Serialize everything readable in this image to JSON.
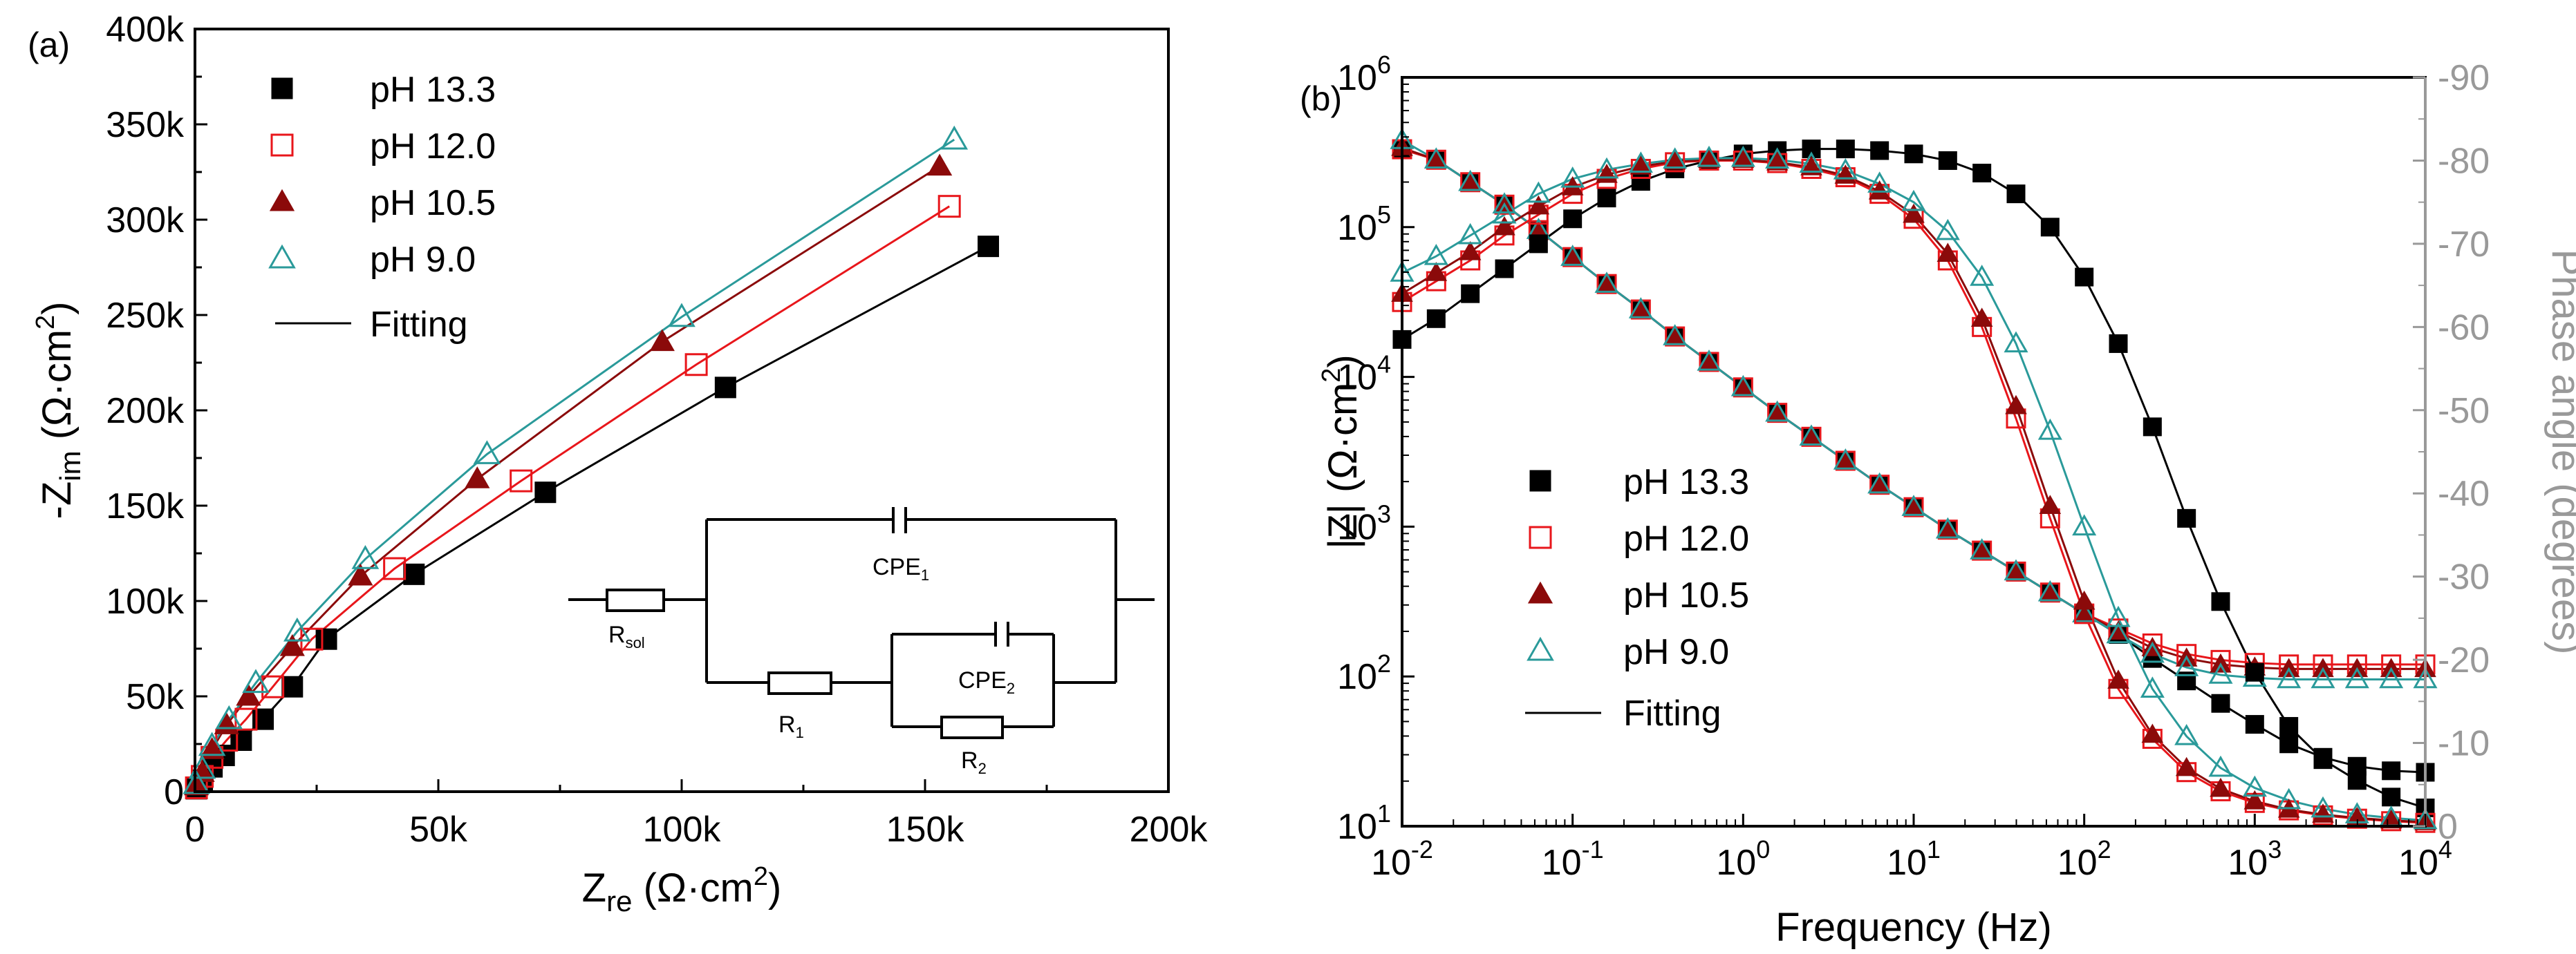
{
  "chart_data": [
    {
      "type": "scatter",
      "panel_label": "(a)",
      "title": "",
      "xlabel": {
        "main": "Z",
        "sub": "re",
        "unit_open": " (Ω·cm",
        "unit_sup": "2",
        "unit_close": ")"
      },
      "ylabel": {
        "main": "-Z",
        "sub": "im",
        "unit_open": " (Ω·cm",
        "unit_sup": "2",
        "unit_close": ")"
      },
      "xlim": [
        0,
        200000
      ],
      "ylim": [
        0,
        400000
      ],
      "xticks": [
        0,
        50000,
        100000,
        150000,
        200000
      ],
      "xtick_labels": [
        "0",
        "50k",
        "100k",
        "150k",
        "200k"
      ],
      "yticks": [
        0,
        50000,
        100000,
        150000,
        200000,
        250000,
        300000,
        350000,
        400000
      ],
      "ytick_labels": [
        "0",
        "50k",
        "100k",
        "150k",
        "200k",
        "250k",
        "300k",
        "350k",
        "400k"
      ],
      "legend": {
        "position": "top-left",
        "fit_label": "Fitting"
      },
      "series": [
        {
          "name": "pH 13.3",
          "color": "#000000",
          "marker": "square-filled",
          "x": [
            300,
            1500,
            3500,
            6000,
            9500,
            14000,
            20000,
            27000,
            45000,
            72000,
            109000,
            163000
          ],
          "y": [
            1500,
            6000,
            13000,
            19000,
            27000,
            38000,
            55000,
            80000,
            114000,
            157000,
            212000,
            286000
          ]
        },
        {
          "name": "pH 12.0",
          "color": "#e8161b",
          "marker": "square-open",
          "x": [
            300,
            1500,
            3500,
            6500,
            10500,
            16000,
            24000,
            41000,
            67000,
            103000,
            155000
          ],
          "y": [
            2000,
            8000,
            18000,
            27000,
            38000,
            55000,
            80000,
            117000,
            163000,
            224000,
            307000
          ]
        },
        {
          "name": "pH 10.5",
          "color": "#8b0a0a",
          "marker": "triangle-filled",
          "x": [
            300,
            1500,
            3500,
            6500,
            11000,
            20000,
            34000,
            58000,
            96000,
            153000
          ],
          "y": [
            3000,
            10000,
            22000,
            35000,
            50000,
            76000,
            113000,
            164000,
            236000,
            328000
          ]
        },
        {
          "name": "pH 9.0",
          "color": "#2a9a9a",
          "marker": "triangle-open",
          "x": [
            300,
            1500,
            3500,
            7000,
            12500,
            21000,
            35000,
            60000,
            100000,
            156000
          ],
          "y": [
            4000,
            12000,
            24000,
            38000,
            57000,
            84000,
            122000,
            177000,
            249000,
            342000
          ]
        }
      ],
      "inset": {
        "labels": {
          "rsol_main": "R",
          "rsol_sub": "sol",
          "cpe1_main": "CPE",
          "cpe1_sub": "1",
          "r1_main": "R",
          "r1_sub": "1",
          "cpe2_main": "CPE",
          "cpe2_sub": "2",
          "r2_main": "R",
          "r2_sub": "2"
        }
      }
    },
    {
      "type": "scatter",
      "panel_label": "(b)",
      "title": "",
      "xlabel": "Frequency (Hz)",
      "ylabel": {
        "main": "|Z| (Ω·cm",
        "sup": "2",
        "close": ")"
      },
      "y2label": "Phase angle (degrees)",
      "xscale": "log",
      "yscale": "log",
      "xlim": [
        0.01,
        10000
      ],
      "ylim": [
        10,
        1000000
      ],
      "y2lim": [
        0,
        -90
      ],
      "xtick_exponents": [
        "-2",
        "-1",
        "0",
        "1",
        "2",
        "3",
        "4"
      ],
      "ytick_exponents": [
        "1",
        "2",
        "3",
        "4",
        "5",
        "6"
      ],
      "y2ticks": [
        "0",
        "-10",
        "-20",
        "-30",
        "-40",
        "-50",
        "-60",
        "-70",
        "-80",
        "-90"
      ],
      "legend": {
        "position": "lower-left",
        "fit_label": "Fitting"
      },
      "impedance_series": [
        {
          "name": "pH 13.3",
          "color": "#000000",
          "marker": "square-filled",
          "log_f": [
            -2,
            -1.8,
            -1.6,
            -1.4,
            -1.2,
            -1,
            -0.8,
            -0.6,
            -0.4,
            -0.2,
            0,
            0.2,
            0.4,
            0.6,
            0.8,
            1,
            1.2,
            1.4,
            1.6,
            1.8,
            2,
            2.2,
            2.4,
            2.6,
            2.8,
            3,
            3.2,
            3.4,
            3.6,
            3.8,
            4
          ],
          "log_z": [
            5.52,
            5.45,
            5.3,
            5.15,
            4.98,
            4.8,
            4.62,
            4.45,
            4.27,
            4.1,
            3.93,
            3.76,
            3.6,
            3.44,
            3.28,
            3.13,
            2.98,
            2.84,
            2.7,
            2.56,
            2.42,
            2.28,
            2.12,
            1.97,
            1.82,
            1.68,
            1.55,
            1.46,
            1.4,
            1.37,
            1.36
          ]
        },
        {
          "name": "pH 12.0",
          "color": "#e8161b",
          "marker": "square-open",
          "log_f": [
            -2,
            -1.8,
            -1.6,
            -1.4,
            -1.2,
            -1,
            -0.8,
            -0.6,
            -0.4,
            -0.2,
            0,
            0.2,
            0.4,
            0.6,
            0.8,
            1,
            1.2,
            1.4,
            1.6,
            1.8,
            2,
            2.2,
            2.4,
            2.6,
            2.8,
            3,
            3.2,
            3.4,
            3.6,
            3.8,
            4
          ],
          "log_z": [
            5.52,
            5.45,
            5.3,
            5.15,
            4.98,
            4.8,
            4.62,
            4.45,
            4.27,
            4.1,
            3.93,
            3.76,
            3.6,
            3.44,
            3.28,
            3.13,
            2.98,
            2.84,
            2.7,
            2.56,
            2.42,
            2.32,
            2.22,
            2.15,
            2.11,
            2.09,
            2.08,
            2.08,
            2.08,
            2.08,
            2.08
          ]
        },
        {
          "name": "pH 10.5",
          "color": "#8b0a0a",
          "marker": "triangle-filled",
          "log_f": [
            -2,
            -1.8,
            -1.6,
            -1.4,
            -1.2,
            -1,
            -0.8,
            -0.6,
            -0.4,
            -0.2,
            0,
            0.2,
            0.4,
            0.6,
            0.8,
            1,
            1.2,
            1.4,
            1.6,
            1.8,
            2,
            2.2,
            2.4,
            2.6,
            2.8,
            3,
            3.2,
            3.4,
            3.6,
            3.8,
            4
          ],
          "log_z": [
            5.53,
            5.45,
            5.3,
            5.15,
            4.98,
            4.8,
            4.62,
            4.45,
            4.27,
            4.1,
            3.93,
            3.76,
            3.6,
            3.44,
            3.28,
            3.13,
            2.98,
            2.84,
            2.7,
            2.56,
            2.42,
            2.3,
            2.19,
            2.12,
            2.08,
            2.06,
            2.05,
            2.05,
            2.05,
            2.05,
            2.05
          ]
        },
        {
          "name": "pH 9.0",
          "color": "#2a9a9a",
          "marker": "triangle-open",
          "log_f": [
            -2,
            -1.8,
            -1.6,
            -1.4,
            -1.2,
            -1,
            -0.8,
            -0.6,
            -0.4,
            -0.2,
            0,
            0.2,
            0.4,
            0.6,
            0.8,
            1,
            1.2,
            1.4,
            1.6,
            1.8,
            2,
            2.2,
            2.4,
            2.6,
            2.8,
            3,
            3.2,
            3.4,
            3.6,
            3.8,
            4
          ],
          "log_z": [
            5.58,
            5.45,
            5.3,
            5.15,
            4.98,
            4.8,
            4.62,
            4.45,
            4.27,
            4.1,
            3.93,
            3.76,
            3.6,
            3.44,
            3.28,
            3.13,
            2.98,
            2.84,
            2.7,
            2.56,
            2.42,
            2.28,
            2.15,
            2.06,
            2.01,
            1.99,
            1.98,
            1.98,
            1.98,
            1.98,
            1.98
          ]
        }
      ],
      "phase_series": [
        {
          "name": "pH 13.3",
          "color": "#000000",
          "marker": "square-filled",
          "log_f": [
            -2,
            -1.8,
            -1.6,
            -1.4,
            -1.2,
            -1,
            -0.8,
            -0.6,
            -0.4,
            -0.2,
            0,
            0.2,
            0.4,
            0.6,
            0.8,
            1,
            1.2,
            1.4,
            1.6,
            1.8,
            2,
            2.2,
            2.4,
            2.6,
            2.8,
            3,
            3.2,
            3.4,
            3.6,
            3.8,
            4
          ],
          "phase": [
            -58.5,
            -61,
            -64,
            -67,
            -70,
            -73,
            -75.5,
            -77.5,
            -79,
            -80,
            -80.8,
            -81.2,
            -81.4,
            -81.4,
            -81.2,
            -80.8,
            -80,
            -78.5,
            -76,
            -72,
            -66,
            -58,
            -48,
            -37,
            -27,
            -18.5,
            -12,
            -8,
            -5.5,
            -3.5,
            -2.2
          ]
        },
        {
          "name": "pH 12.0",
          "color": "#e8161b",
          "marker": "square-open",
          "log_f": [
            -2,
            -1.8,
            -1.6,
            -1.4,
            -1.2,
            -1,
            -0.8,
            -0.6,
            -0.4,
            -0.2,
            0,
            0.2,
            0.4,
            0.6,
            0.8,
            1,
            1.2,
            1.4,
            1.6,
            1.8,
            2,
            2.2,
            2.4,
            2.6,
            2.8,
            3,
            3.2,
            3.4,
            3.6,
            3.8,
            4
          ],
          "phase": [
            -63,
            -65.5,
            -68,
            -71,
            -73.5,
            -76,
            -77.8,
            -79,
            -79.8,
            -80,
            -80,
            -79.7,
            -79,
            -78,
            -76,
            -73,
            -68,
            -60,
            -49,
            -37,
            -25.5,
            -16.5,
            -10.5,
            -6.5,
            -4.2,
            -2.8,
            -1.9,
            -1.3,
            -0.9,
            -0.6,
            -0.4
          ]
        },
        {
          "name": "pH 10.5",
          "color": "#8b0a0a",
          "marker": "triangle-filled",
          "log_f": [
            -2,
            -1.8,
            -1.6,
            -1.4,
            -1.2,
            -1,
            -0.8,
            -0.6,
            -0.4,
            -0.2,
            0,
            0.2,
            0.4,
            0.6,
            0.8,
            1,
            1.2,
            1.4,
            1.6,
            1.8,
            2,
            2.2,
            2.4,
            2.6,
            2.8,
            3,
            3.2,
            3.4,
            3.6,
            3.8,
            4
          ],
          "phase": [
            -64,
            -66.5,
            -69,
            -72,
            -74.5,
            -76.8,
            -78.3,
            -79.3,
            -79.9,
            -80.1,
            -80.1,
            -79.8,
            -79.2,
            -78.2,
            -76.3,
            -73.5,
            -68.8,
            -61,
            -50.5,
            -38.5,
            -27,
            -17.5,
            -11,
            -7,
            -4.5,
            -3,
            -2,
            -1.4,
            -1,
            -0.7,
            -0.5
          ]
        },
        {
          "name": "pH 9.0",
          "color": "#2a9a9a",
          "marker": "triangle-open",
          "log_f": [
            -2,
            -1.8,
            -1.6,
            -1.4,
            -1.2,
            -1,
            -0.8,
            -0.6,
            -0.4,
            -0.2,
            0,
            0.2,
            0.4,
            0.6,
            0.8,
            1,
            1.2,
            1.4,
            1.6,
            1.8,
            2,
            2.2,
            2.4,
            2.6,
            2.8,
            3,
            3.2,
            3.4,
            3.6,
            3.8,
            4
          ],
          "phase": [
            -66.5,
            -68.5,
            -71,
            -73.5,
            -76,
            -77.8,
            -78.9,
            -79.6,
            -80.1,
            -80.3,
            -80.3,
            -80.1,
            -79.6,
            -78.8,
            -77.2,
            -75,
            -71.5,
            -66,
            -58,
            -47.5,
            -36,
            -25,
            -16.5,
            -10.8,
            -7,
            -4.6,
            -3.1,
            -2.1,
            -1.4,
            -1,
            -0.7
          ]
        }
      ]
    }
  ]
}
